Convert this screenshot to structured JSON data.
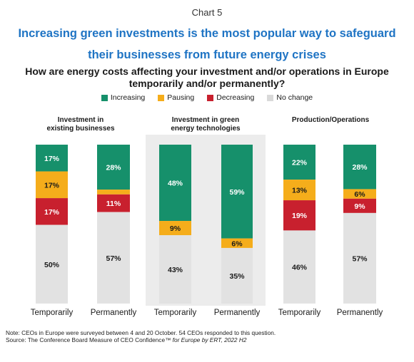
{
  "header": {
    "chart_label": "Chart 5",
    "title_line1": "Increasing green investments is the most popular way to safeguard",
    "title_line2": "their businesses from future energy crises",
    "subtitle_line1": "How are energy costs affecting your investment and/or operations in Europe",
    "subtitle_line2": "temporarily and/or permanently?"
  },
  "colors": {
    "Increasing": "#16906b",
    "Pausing": "#f5ad1b",
    "Decreasing": "#c8202e",
    "No change": "#e2e2e2",
    "background_panel": "#ececec"
  },
  "chart_data": {
    "type": "bar",
    "stacked": true,
    "legend_position": "top",
    "ylim": [
      0,
      100
    ],
    "series_names": [
      "Increasing",
      "Pausing",
      "Decreasing",
      "No change"
    ],
    "groups": [
      {
        "title_line1": "Investment in",
        "title_line2": "existing businesses",
        "bars": [
          {
            "category": "Temporarily",
            "values": {
              "Increasing": 17,
              "Pausing": 17,
              "Decreasing": 17,
              "No change": 50
            }
          },
          {
            "category": "Permanently",
            "values": {
              "Increasing": 28,
              "Pausing": 3,
              "Decreasing": 11,
              "No change": 57
            }
          }
        ]
      },
      {
        "title_line1": "Investment in green",
        "title_line2": "energy technologies",
        "bars": [
          {
            "category": "Temporarily",
            "values": {
              "Increasing": 48,
              "Pausing": 9,
              "Decreasing": 0,
              "No change": 43
            }
          },
          {
            "category": "Permanently",
            "values": {
              "Increasing": 59,
              "Pausing": 6,
              "Decreasing": 0,
              "No change": 35
            }
          }
        ]
      },
      {
        "title_line1": "Production/Operations",
        "title_line2": "",
        "bars": [
          {
            "category": "Temporarily",
            "values": {
              "Increasing": 22,
              "Pausing": 13,
              "Decreasing": 19,
              "No change": 46
            }
          },
          {
            "category": "Permanently",
            "values": {
              "Increasing": 28,
              "Pausing": 6,
              "Decreasing": 9,
              "No change": 57
            }
          }
        ]
      }
    ],
    "label_threshold": 5
  },
  "notes": {
    "line1": "Note: CEOs in Europe were surveyed between 4 and 20 October. 54 CEOs responded to this question.",
    "line2_prefix": "Source: The Conference Board Measure of CEO Confidence™",
    "line2_italic": " for Europe by ERT, 2022 H2"
  }
}
